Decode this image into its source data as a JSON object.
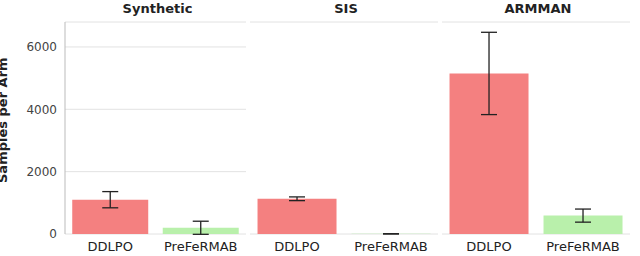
{
  "chart_data": [
    {
      "type": "bar",
      "title": "Synthetic",
      "y_label": "Samples per Arm",
      "categories": [
        "DDLPO",
        "PreFeRMAB"
      ],
      "values": [
        1100,
        200
      ],
      "errors": [
        260,
        210
      ],
      "colors": [
        "#f48080",
        "#b9f0ab"
      ],
      "ylim": [
        0,
        6800
      ],
      "yticks": [
        0,
        2000,
        4000,
        6000
      ],
      "grid": true
    },
    {
      "type": "bar",
      "title": "SIS",
      "categories": [
        "DDLPO",
        "PreFeRMAB"
      ],
      "values": [
        1130,
        5
      ],
      "errors": [
        60,
        5
      ],
      "colors": [
        "#f48080",
        "#b9f0ab"
      ],
      "ylim": [
        0,
        6800
      ],
      "yticks": [
        0,
        2000,
        4000,
        6000
      ],
      "grid": true
    },
    {
      "type": "bar",
      "title": "ARMMAN",
      "categories": [
        "DDLPO",
        "PreFeRMAB"
      ],
      "values": [
        5150,
        590
      ],
      "errors": [
        1320,
        210
      ],
      "colors": [
        "#f48080",
        "#b9f0ab"
      ],
      "ylim": [
        0,
        6800
      ],
      "yticks": [
        0,
        2000,
        4000,
        6000
      ],
      "grid": true
    }
  ]
}
